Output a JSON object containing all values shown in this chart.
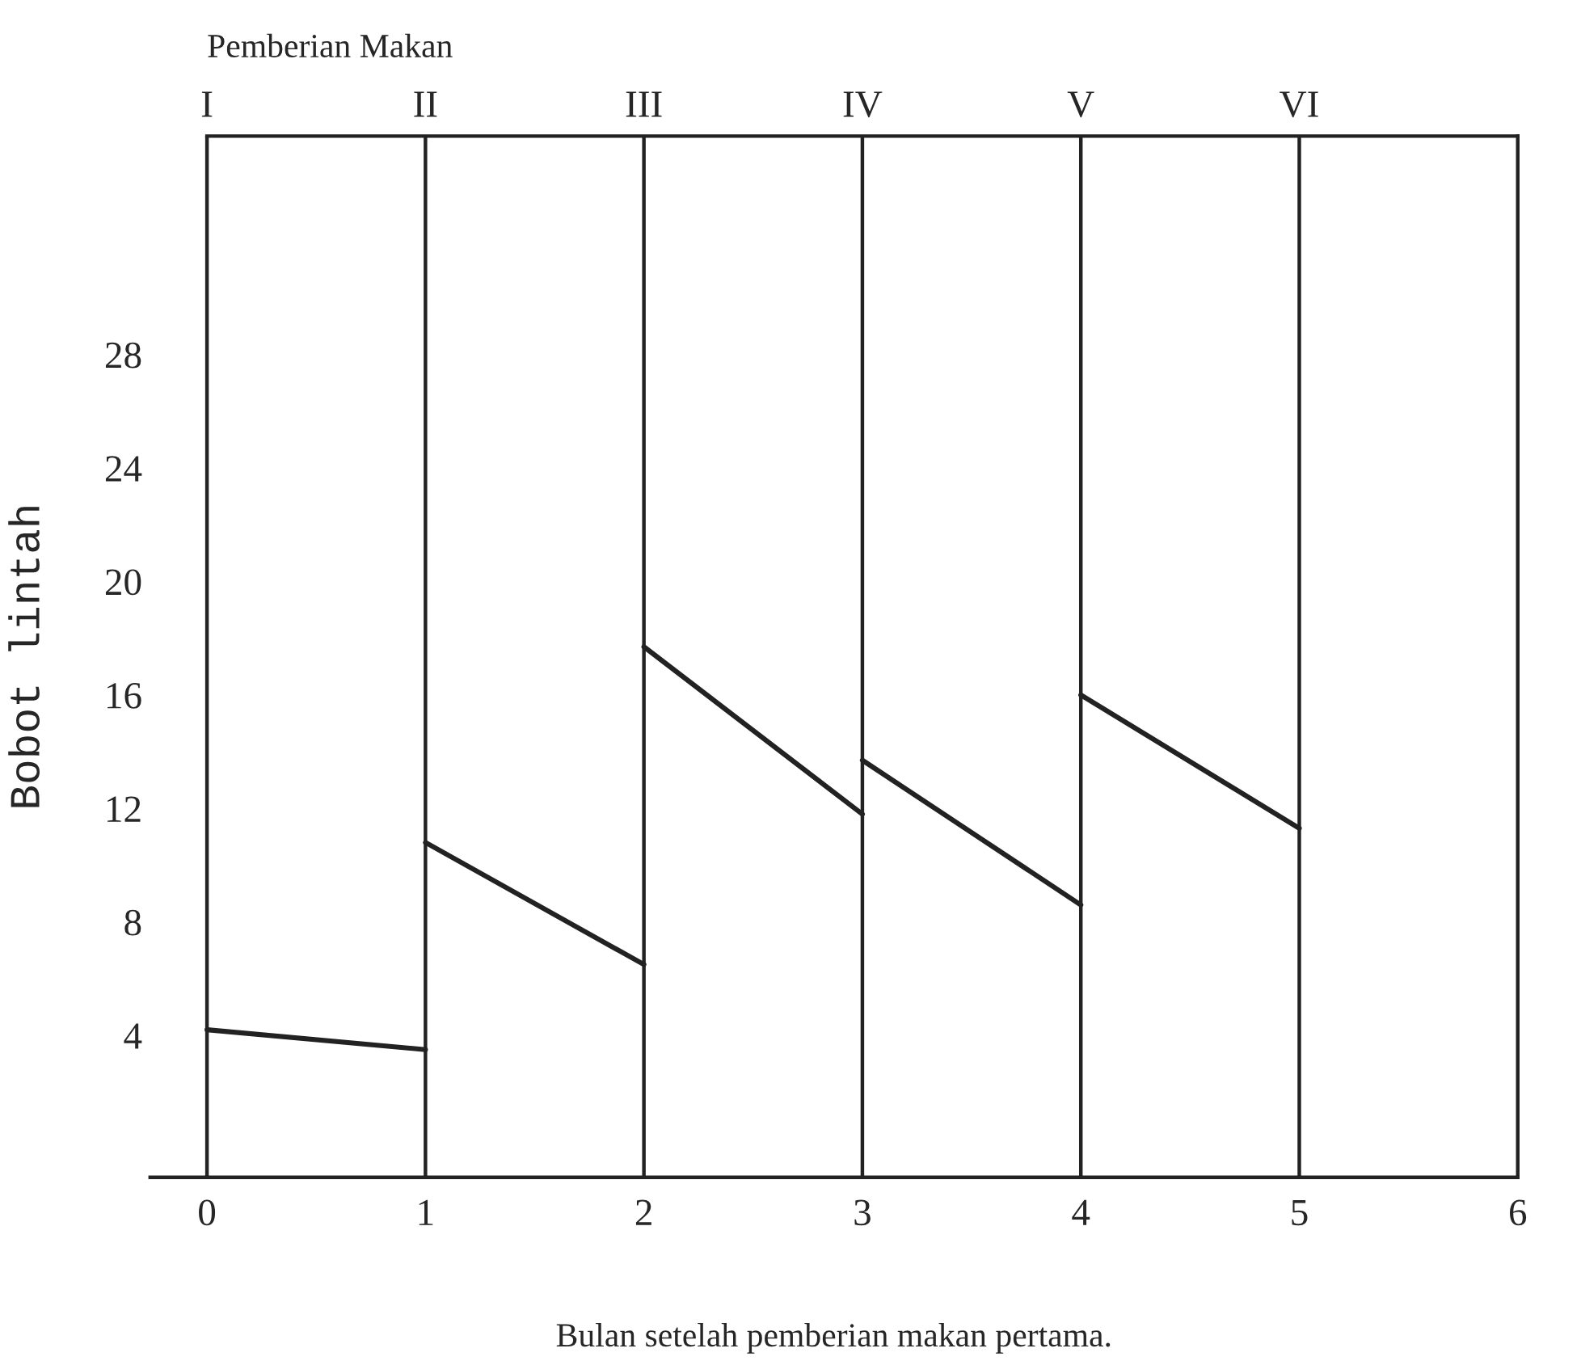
{
  "chart_data": {
    "type": "line",
    "xlabel": "Bulan setelah pemberian makan pertama.",
    "ylabel": "Bobot lintah",
    "annotations": [
      "Pemberian Makan"
    ],
    "series": [
      {
        "color": "#222222",
        "x": [
          0,
          1
        ],
        "values": [
          4.2,
          3.5
        ]
      },
      {
        "color": "#222222",
        "x": [
          1,
          2
        ],
        "values": [
          10.8,
          6.5
        ]
      },
      {
        "color": "#222222",
        "x": [
          2,
          3
        ],
        "values": [
          17.7,
          11.8
        ]
      },
      {
        "color": "#222222",
        "x": [
          3,
          4
        ],
        "values": [
          13.7,
          8.6
        ]
      },
      {
        "color": "#222222",
        "x": [
          4,
          5
        ],
        "values": [
          16.0,
          11.3
        ]
      }
    ],
    "xlim": [
      -0.26,
      6
    ],
    "xticks": [
      0,
      1,
      2,
      3,
      4,
      5,
      6
    ],
    "ref_lines": [
      {
        "axis": "x",
        "value": 0,
        "label": "I"
      },
      {
        "axis": "x",
        "value": 1,
        "label": "II"
      },
      {
        "axis": "x",
        "value": 2,
        "label": "III"
      },
      {
        "axis": "x",
        "value": 3,
        "label": "IV"
      },
      {
        "axis": "x",
        "value": 4,
        "label": "V"
      },
      {
        "axis": "x",
        "value": 5,
        "label": "VI"
      }
    ],
    "ylim": [
      -1,
      35.7
    ],
    "yticks": [
      4,
      8,
      12,
      16,
      20,
      24,
      28
    ],
    "grid": false,
    "legend": false,
    "marker": "none",
    "line_style": "solid"
  }
}
